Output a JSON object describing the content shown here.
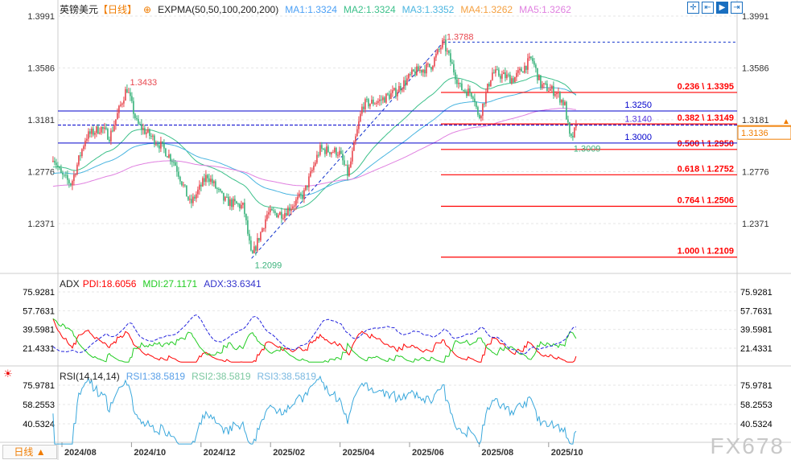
{
  "header": {
    "symbol": "英镑美元",
    "period_tag": "【日线】",
    "indicator": "EXPMA(50,50,100,200,200)",
    "ma": [
      {
        "label": "MA1:1.3324",
        "color": "#4a9ff5"
      },
      {
        "label": "MA2:1.3324",
        "color": "#3cc08a"
      },
      {
        "label": "MA3:1.3352",
        "color": "#4ab5e0"
      },
      {
        "label": "MA4:1.3262",
        "color": "#f5a040"
      },
      {
        "label": "MA5:1.3262",
        "color": "#e080e0"
      }
    ]
  },
  "toolbar": {
    "icons": [
      "crosshair-icon",
      "zoom-left-icon",
      "play-right-icon",
      "jump-end-icon"
    ]
  },
  "period_button": "日线 ▲",
  "watermark": "FX678",
  "chart_data": {
    "type": "candlestick",
    "price_axis_ticks": [
      "1.3991",
      "1.3586",
      "1.3181",
      "1.2776",
      "1.2371"
    ],
    "price_range": [
      1.19,
      1.4
    ],
    "current_price": "1.3136",
    "time_ticks": [
      "2024/08",
      "2024/10",
      "2024/12",
      "2025/02",
      "2025/04",
      "2025/06",
      "2025/08",
      "2025/10"
    ],
    "close_keypoints": [
      [
        "2024-07-22",
        1.29
      ],
      [
        "2024-07-29",
        1.275
      ],
      [
        "2024-08-07",
        1.268
      ],
      [
        "2024-08-20",
        1.305
      ],
      [
        "2024-09-02",
        1.312
      ],
      [
        "2024-09-10",
        1.305
      ],
      [
        "2024-09-25",
        1.3433
      ],
      [
        "2024-10-04",
        1.315
      ],
      [
        "2024-10-25",
        1.298
      ],
      [
        "2024-11-06",
        1.285
      ],
      [
        "2024-11-20",
        1.252
      ],
      [
        "2024-12-05",
        1.275
      ],
      [
        "2024-12-20",
        1.255
      ],
      [
        "2025-01-06",
        1.25
      ],
      [
        "2025-01-13",
        1.2099
      ],
      [
        "2025-01-27",
        1.245
      ],
      [
        "2025-02-10",
        1.245
      ],
      [
        "2025-02-28",
        1.26
      ],
      [
        "2025-03-14",
        1.295
      ],
      [
        "2025-03-31",
        1.293
      ],
      [
        "2025-04-08",
        1.275
      ],
      [
        "2025-04-21",
        1.33
      ],
      [
        "2025-05-06",
        1.333
      ],
      [
        "2025-05-20",
        1.34
      ],
      [
        "2025-06-05",
        1.355
      ],
      [
        "2025-06-20",
        1.36
      ],
      [
        "2025-07-01",
        1.3788
      ],
      [
        "2025-07-16",
        1.343
      ],
      [
        "2025-07-28",
        1.338
      ],
      [
        "2025-08-01",
        1.318
      ],
      [
        "2025-08-13",
        1.355
      ],
      [
        "2025-09-01",
        1.35
      ],
      [
        "2025-09-17",
        1.366
      ],
      [
        "2025-09-25",
        1.345
      ],
      [
        "2025-10-08",
        1.34
      ],
      [
        "2025-10-16",
        1.33
      ],
      [
        "2025-10-21",
        1.3009
      ],
      [
        "2025-10-27",
        1.3136
      ]
    ],
    "annotations": [
      {
        "label": "1.3433",
        "price": 1.3433,
        "date": "2024-09-25",
        "color": "#e8474f"
      },
      {
        "label": "1.2099",
        "price": 1.2099,
        "date": "2025-01-13",
        "color": "#3bb37c"
      },
      {
        "label": "1.3788",
        "price": 1.3788,
        "date": "2025-07-01",
        "color": "#e8474f"
      },
      {
        "label": "1.3009",
        "price": 1.3009,
        "date": "2025-10-21",
        "color": "#3bb37c"
      }
    ],
    "fibonacci": [
      {
        "label": "0.236 \\ 1.3395",
        "price": 1.3395
      },
      {
        "label": "0.382 \\ 1.3149",
        "price": 1.3149
      },
      {
        "label": "0.500 \\ 1.2950",
        "price": 1.295
      },
      {
        "label": "0.618 \\ 1.2752",
        "price": 1.2752
      },
      {
        "label": "0.764 \\ 1.2506",
        "price": 1.2506
      },
      {
        "label": "1.000 \\ 1.2109",
        "price": 1.2109
      }
    ],
    "horizontal_lines": [
      {
        "label": "1.3250",
        "price": 1.325
      },
      {
        "label": "1.3140",
        "price": 1.314
      },
      {
        "label": "1.3000",
        "price": 1.3
      }
    ],
    "colors": {
      "up": "#e8474f",
      "down": "#3bb37c",
      "fib": "#ff0000",
      "hline": "#0000cc",
      "ema50": "#3cc08a",
      "ema100": "#4ab5e0",
      "ema200": "#e080e0"
    },
    "adx": {
      "title": "ADX",
      "pdi": "PDI:18.6056",
      "mdi": "MDI:27.1171",
      "adx": "ADX:33.6341",
      "ticks": [
        "75.9281",
        "57.7631",
        "39.5981",
        "21.4331"
      ],
      "range": [
        7,
        85
      ]
    },
    "rsi": {
      "title": "RSI(14,14,14)",
      "rsi1": "RSI1:38.5819",
      "rsi2": "RSI2:38.5819",
      "rsi3": "RSI3:38.5819",
      "ticks": [
        "75.9781",
        "58.2553",
        "40.5324"
      ],
      "range": [
        20,
        85
      ]
    }
  }
}
